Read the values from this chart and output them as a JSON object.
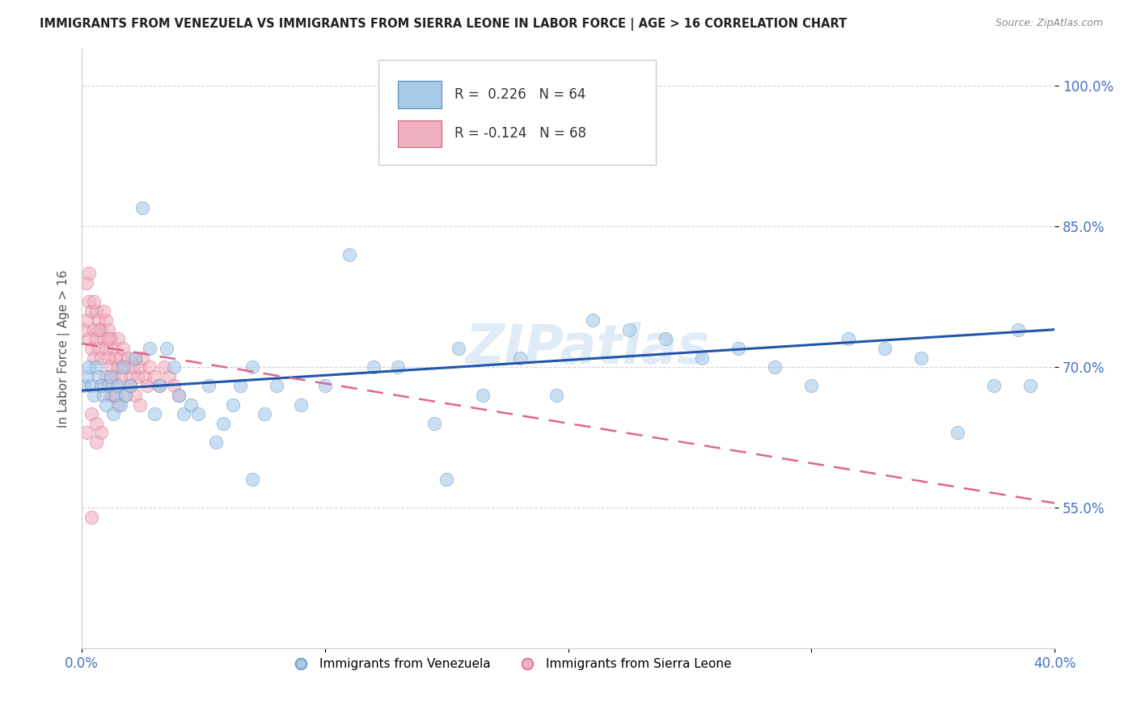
{
  "title": "IMMIGRANTS FROM VENEZUELA VS IMMIGRANTS FROM SIERRA LEONE IN LABOR FORCE | AGE > 16 CORRELATION CHART",
  "source": "Source: ZipAtlas.com",
  "ylabel": "In Labor Force | Age > 16",
  "xlim": [
    0.0,
    0.4
  ],
  "ylim": [
    0.4,
    1.04
  ],
  "xticks": [
    0.0,
    0.1,
    0.2,
    0.3,
    0.4
  ],
  "xtick_labels": [
    "0.0%",
    "",
    "",
    "",
    "40.0%"
  ],
  "yticks": [
    0.55,
    0.7,
    0.85,
    1.0
  ],
  "ytick_labels": [
    "55.0%",
    "70.0%",
    "85.0%",
    "100.0%"
  ],
  "grid_color": "#d0d0d0",
  "background_color": "#ffffff",
  "venezuela_color": "#a8c8e8",
  "venezuela_edge_color": "#5090c0",
  "sierra_leone_color": "#f0b0c0",
  "sierra_leone_edge_color": "#d06080",
  "venezuela_line_color": "#2255aa",
  "sierra_leone_line_color": "#dd6688",
  "venezuela_R": 0.226,
  "venezuela_N": 64,
  "sierra_leone_R": -0.124,
  "sierra_leone_N": 68,
  "ven_trend_x": [
    0.0,
    0.4
  ],
  "ven_trend_y": [
    0.675,
    0.74
  ],
  "sl_trend_x": [
    0.0,
    0.4
  ],
  "sl_trend_y": [
    0.725,
    0.555
  ],
  "venezuela_x": [
    0.001,
    0.002,
    0.003,
    0.004,
    0.005,
    0.006,
    0.007,
    0.008,
    0.009,
    0.01,
    0.011,
    0.012,
    0.013,
    0.014,
    0.015,
    0.016,
    0.017,
    0.018,
    0.02,
    0.022,
    0.025,
    0.028,
    0.03,
    0.032,
    0.035,
    0.038,
    0.04,
    0.042,
    0.045,
    0.048,
    0.052,
    0.055,
    0.058,
    0.062,
    0.065,
    0.07,
    0.075,
    0.08,
    0.09,
    0.1,
    0.11,
    0.12,
    0.13,
    0.145,
    0.155,
    0.165,
    0.18,
    0.195,
    0.21,
    0.225,
    0.24,
    0.255,
    0.27,
    0.285,
    0.3,
    0.315,
    0.33,
    0.345,
    0.36,
    0.375,
    0.385,
    0.39,
    0.15,
    0.07
  ],
  "venezuela_y": [
    0.68,
    0.69,
    0.7,
    0.68,
    0.67,
    0.7,
    0.69,
    0.68,
    0.67,
    0.66,
    0.68,
    0.69,
    0.65,
    0.67,
    0.68,
    0.66,
    0.7,
    0.67,
    0.68,
    0.71,
    0.87,
    0.72,
    0.65,
    0.68,
    0.72,
    0.7,
    0.67,
    0.65,
    0.66,
    0.65,
    0.68,
    0.62,
    0.64,
    0.66,
    0.68,
    0.7,
    0.65,
    0.68,
    0.66,
    0.68,
    0.82,
    0.7,
    0.7,
    0.64,
    0.72,
    0.67,
    0.71,
    0.67,
    0.75,
    0.74,
    0.73,
    0.71,
    0.72,
    0.7,
    0.68,
    0.73,
    0.72,
    0.71,
    0.63,
    0.68,
    0.74,
    0.68,
    0.58,
    0.58
  ],
  "sierra_leone_x": [
    0.001,
    0.002,
    0.002,
    0.003,
    0.003,
    0.004,
    0.004,
    0.005,
    0.005,
    0.006,
    0.006,
    0.007,
    0.007,
    0.008,
    0.008,
    0.009,
    0.01,
    0.01,
    0.011,
    0.011,
    0.012,
    0.012,
    0.013,
    0.013,
    0.014,
    0.015,
    0.015,
    0.016,
    0.017,
    0.018,
    0.019,
    0.02,
    0.021,
    0.022,
    0.023,
    0.024,
    0.025,
    0.026,
    0.027,
    0.028,
    0.03,
    0.032,
    0.034,
    0.036,
    0.038,
    0.04,
    0.008,
    0.01,
    0.012,
    0.014,
    0.016,
    0.018,
    0.02,
    0.022,
    0.024,
    0.004,
    0.006,
    0.008,
    0.003,
    0.005,
    0.007,
    0.009,
    0.011,
    0.013,
    0.015,
    0.002,
    0.004,
    0.006
  ],
  "sierra_leone_y": [
    0.74,
    0.79,
    0.75,
    0.77,
    0.73,
    0.76,
    0.72,
    0.74,
    0.71,
    0.76,
    0.73,
    0.75,
    0.72,
    0.74,
    0.71,
    0.73,
    0.75,
    0.72,
    0.74,
    0.71,
    0.73,
    0.7,
    0.72,
    0.69,
    0.71,
    0.73,
    0.7,
    0.71,
    0.72,
    0.7,
    0.71,
    0.69,
    0.7,
    0.71,
    0.69,
    0.7,
    0.71,
    0.69,
    0.68,
    0.7,
    0.69,
    0.68,
    0.7,
    0.69,
    0.68,
    0.67,
    0.68,
    0.69,
    0.67,
    0.68,
    0.69,
    0.67,
    0.68,
    0.67,
    0.66,
    0.65,
    0.64,
    0.63,
    0.8,
    0.77,
    0.74,
    0.76,
    0.73,
    0.67,
    0.66,
    0.63,
    0.54,
    0.62
  ],
  "watermark": "ZIPatlas"
}
